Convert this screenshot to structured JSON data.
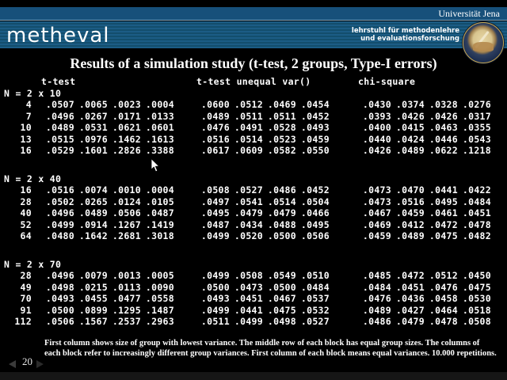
{
  "colors": {
    "background": "#000000",
    "text": "#ffffff",
    "bar_blue": "#17507a",
    "band_light": "#1b5c85",
    "band_dark": "#134e6d",
    "line_light": "#7fa8c4"
  },
  "header": {
    "university": "Universität Jena",
    "brand": "metheval",
    "chair_line1": "lehrstuhl für methodenlehre",
    "chair_line2": "und evaluationsforschung",
    "seal_icon": "university-seal"
  },
  "title": "Results of a simulation study (t-test, 2 groups, Type-I errors)",
  "table": {
    "column_groups": [
      "t-test",
      "t-test unequal var()",
      "chi-square"
    ],
    "blocks": [
      {
        "label": "N = 2 x 10",
        "rows": [
          {
            "n": "4",
            "t_test": [
              ".0507",
              ".0065",
              ".0023",
              ".0004"
            ],
            "t_test_unequal": [
              ".0600",
              ".0512",
              ".0469",
              ".0454"
            ],
            "chi_square": [
              ".0430",
              ".0374",
              ".0328",
              ".0276"
            ]
          },
          {
            "n": "7",
            "t_test": [
              ".0496",
              ".0267",
              ".0171",
              ".0133"
            ],
            "t_test_unequal": [
              ".0489",
              ".0511",
              ".0511",
              ".0452"
            ],
            "chi_square": [
              ".0393",
              ".0426",
              ".0426",
              ".0317"
            ]
          },
          {
            "n": "10",
            "t_test": [
              ".0489",
              ".0531",
              ".0621",
              ".0601"
            ],
            "t_test_unequal": [
              ".0476",
              ".0491",
              ".0528",
              ".0493"
            ],
            "chi_square": [
              ".0400",
              ".0415",
              ".0463",
              ".0355"
            ]
          },
          {
            "n": "13",
            "t_test": [
              ".0515",
              ".0976",
              ".1462",
              ".1613"
            ],
            "t_test_unequal": [
              ".0516",
              ".0514",
              ".0523",
              ".0459"
            ],
            "chi_square": [
              ".0440",
              ".0424",
              ".0446",
              ".0543"
            ]
          },
          {
            "n": "16",
            "t_test": [
              ".0529",
              ".1601",
              ".2826",
              ".3388"
            ],
            "t_test_unequal": [
              ".0617",
              ".0609",
              ".0582",
              ".0550"
            ],
            "chi_square": [
              ".0426",
              ".0489",
              ".0622",
              ".1218"
            ]
          }
        ]
      },
      {
        "label": "N = 2 x 40",
        "rows": [
          {
            "n": "16",
            "t_test": [
              ".0516",
              ".0074",
              ".0010",
              ".0004"
            ],
            "t_test_unequal": [
              ".0508",
              ".0527",
              ".0486",
              ".0452"
            ],
            "chi_square": [
              ".0473",
              ".0470",
              ".0441",
              ".0422"
            ]
          },
          {
            "n": "28",
            "t_test": [
              ".0502",
              ".0265",
              ".0124",
              ".0105"
            ],
            "t_test_unequal": [
              ".0497",
              ".0541",
              ".0514",
              ".0504"
            ],
            "chi_square": [
              ".0473",
              ".0516",
              ".0495",
              ".0484"
            ]
          },
          {
            "n": "40",
            "t_test": [
              ".0496",
              ".0489",
              ".0506",
              ".0487"
            ],
            "t_test_unequal": [
              ".0495",
              ".0479",
              ".0479",
              ".0466"
            ],
            "chi_square": [
              ".0467",
              ".0459",
              ".0461",
              ".0451"
            ]
          },
          {
            "n": "52",
            "t_test": [
              ".0499",
              ".0914",
              ".1267",
              ".1419"
            ],
            "t_test_unequal": [
              ".0487",
              ".0434",
              ".0488",
              ".0495"
            ],
            "chi_square": [
              ".0469",
              ".0412",
              ".0472",
              ".0478"
            ]
          },
          {
            "n": "64",
            "t_test": [
              ".0480",
              ".1642",
              ".2681",
              ".3018"
            ],
            "t_test_unequal": [
              ".0499",
              ".0520",
              ".0500",
              ".0506"
            ],
            "chi_square": [
              ".0459",
              ".0489",
              ".0475",
              ".0482"
            ]
          }
        ]
      },
      {
        "label": "N = 2 x 70",
        "rows": [
          {
            "n": "28",
            "t_test": [
              ".0496",
              ".0079",
              ".0013",
              ".0005"
            ],
            "t_test_unequal": [
              ".0499",
              ".0508",
              ".0549",
              ".0510"
            ],
            "chi_square": [
              ".0485",
              ".0472",
              ".0512",
              ".0450"
            ]
          },
          {
            "n": "49",
            "t_test": [
              ".0498",
              ".0215",
              ".0113",
              ".0090"
            ],
            "t_test_unequal": [
              ".0500",
              ".0473",
              ".0500",
              ".0484"
            ],
            "chi_square": [
              ".0484",
              ".0451",
              ".0476",
              ".0475"
            ]
          },
          {
            "n": "70",
            "t_test": [
              ".0493",
              ".0455",
              ".0477",
              ".0558"
            ],
            "t_test_unequal": [
              ".0493",
              ".0451",
              ".0467",
              ".0537"
            ],
            "chi_square": [
              ".0476",
              ".0436",
              ".0458",
              ".0530"
            ]
          },
          {
            "n": "91",
            "t_test": [
              ".0500",
              ".0899",
              ".1295",
              ".1487"
            ],
            "t_test_unequal": [
              ".0499",
              ".0441",
              ".0475",
              ".0532"
            ],
            "chi_square": [
              ".0489",
              ".0427",
              ".0464",
              ".0518"
            ]
          },
          {
            "n": "112",
            "t_test": [
              ".0506",
              ".1567",
              ".2537",
              ".2963"
            ],
            "t_test_unequal": [
              ".0511",
              ".0499",
              ".0498",
              ".0527"
            ],
            "chi_square": [
              ".0486",
              ".0479",
              ".0478",
              ".0508"
            ]
          }
        ]
      }
    ]
  },
  "footer": {
    "page_number": "20",
    "note": "First column shows size of group with lowest variance. The middle row of each block has equal group sizes. The columns of each block refer to increasingly different group variances. First column of each block means equal variances. 10.000 repetitions.",
    "prev_icon": "arrow-left",
    "next_icon": "arrow-right"
  },
  "cursor_icon": "mouse-pointer"
}
